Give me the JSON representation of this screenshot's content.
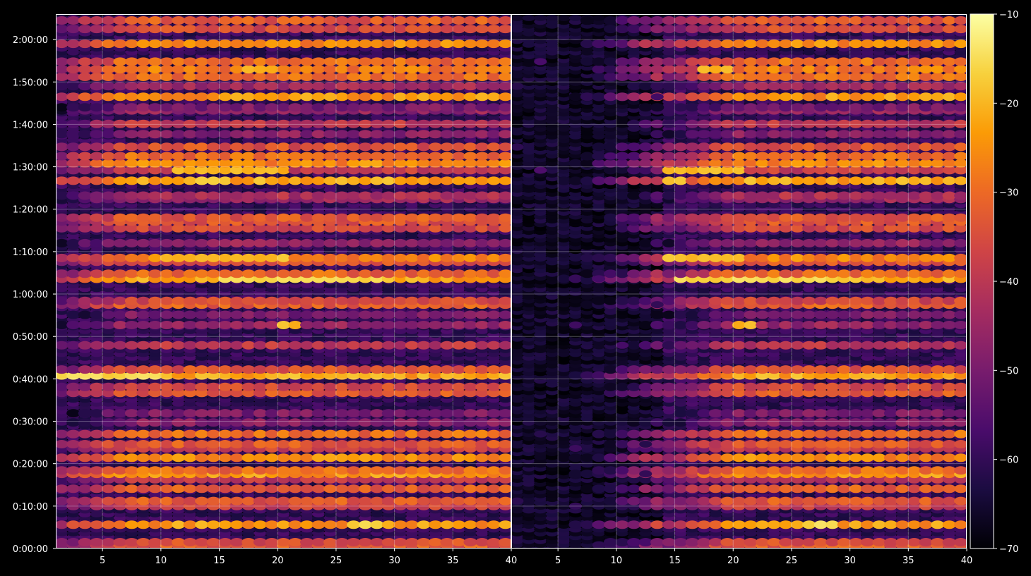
{
  "chart_data": {
    "type": "heatmap",
    "title": "",
    "xlabel": "",
    "ylabel": "",
    "grid": true,
    "panels": [
      {
        "name": "",
        "xlim": [
          1,
          40
        ],
        "x_ticks": [
          5,
          10,
          15,
          20,
          25,
          30,
          35,
          40
        ],
        "onset_x": 1
      },
      {
        "name": "",
        "xlim": [
          1,
          40
        ],
        "x_ticks": [
          5,
          10,
          15,
          20,
          25,
          30,
          35,
          40
        ],
        "onset_x": 14
      }
    ],
    "y_time_range_minutes": [
      0,
      126
    ],
    "y_ticks": [
      "0:00:00",
      "0:10:00",
      "0:20:00",
      "0:30:00",
      "0:40:00",
      "0:50:00",
      "1:00:00",
      "1:10:00",
      "1:20:00",
      "1:30:00",
      "1:40:00",
      "1:50:00",
      "2:00:00"
    ],
    "y_tick_minutes": [
      0,
      10,
      20,
      30,
      40,
      50,
      60,
      70,
      80,
      90,
      100,
      110,
      120
    ],
    "colorbar": {
      "min": -70,
      "max": -10,
      "ticks": [
        "−10",
        "−20",
        "−30",
        "−40",
        "−50",
        "−60",
        "−70"
      ],
      "tick_values": [
        -10,
        -20,
        -30,
        -40,
        -50,
        -60,
        -70
      ],
      "colormap": [
        "#000004",
        "#1b0c41",
        "#4a0c6b",
        "#781c6d",
        "#a52c60",
        "#cf4446",
        "#ed6925",
        "#fb9b06",
        "#f7d13d",
        "#fcffa4"
      ]
    },
    "bands": [
      {
        "minutes": 0.8,
        "level": -33
      },
      {
        "minutes": 1.5,
        "level": -35
      },
      {
        "minutes": 5.6,
        "level": -24
      },
      {
        "minutes": 10.0,
        "level": -38
      },
      {
        "minutes": 11.2,
        "level": -33
      },
      {
        "minutes": 14.1,
        "level": -32
      },
      {
        "minutes": 16.3,
        "level": -40
      },
      {
        "minutes": 17.6,
        "level": -24
      },
      {
        "minutes": 18.4,
        "level": -30
      },
      {
        "minutes": 21.4,
        "level": -26
      },
      {
        "minutes": 23.6,
        "level": -38
      },
      {
        "minutes": 24.6,
        "level": -33
      },
      {
        "minutes": 27.0,
        "level": -30
      },
      {
        "minutes": 29.7,
        "level": -48
      },
      {
        "minutes": 31.9,
        "level": -50
      },
      {
        "minutes": 36.7,
        "level": -33
      },
      {
        "minutes": 38.1,
        "level": -36
      },
      {
        "minutes": 40.8,
        "level": -22
      },
      {
        "minutes": 42.2,
        "level": -34
      },
      {
        "minutes": 47.9,
        "level": -40
      },
      {
        "minutes": 52.7,
        "level": -46
      },
      {
        "minutes": 55.1,
        "level": -50
      },
      {
        "minutes": 57.5,
        "level": -32
      },
      {
        "minutes": 58.4,
        "level": -36
      },
      {
        "minutes": 63.6,
        "level": -22
      },
      {
        "minutes": 64.8,
        "level": -31
      },
      {
        "minutes": 67.6,
        "level": -34
      },
      {
        "minutes": 68.5,
        "level": -27
      },
      {
        "minutes": 72.0,
        "level": -46
      },
      {
        "minutes": 75.5,
        "level": -36
      },
      {
        "minutes": 77.1,
        "level": -34
      },
      {
        "minutes": 78.0,
        "level": -33
      },
      {
        "minutes": 82.4,
        "level": -45
      },
      {
        "minutes": 83.2,
        "level": -42
      },
      {
        "minutes": 86.7,
        "level": -22
      },
      {
        "minutes": 89.2,
        "level": -38
      },
      {
        "minutes": 90.8,
        "level": -26
      },
      {
        "minutes": 92.5,
        "level": -30
      },
      {
        "minutes": 94.7,
        "level": -34
      },
      {
        "minutes": 97.7,
        "level": -48
      },
      {
        "minutes": 100.1,
        "level": -40
      },
      {
        "minutes": 103.3,
        "level": -46
      },
      {
        "minutes": 104.0,
        "level": -50
      },
      {
        "minutes": 106.5,
        "level": -24
      },
      {
        "minutes": 109.0,
        "level": -44
      },
      {
        "minutes": 111.2,
        "level": -30
      },
      {
        "minutes": 113.0,
        "level": -28
      },
      {
        "minutes": 114.8,
        "level": -30
      },
      {
        "minutes": 119.0,
        "level": -26
      },
      {
        "minutes": 122.5,
        "level": -36
      },
      {
        "minutes": 124.5,
        "level": -33
      }
    ],
    "hotspots": [
      {
        "minutes": 40.8,
        "x_from": 1,
        "x_to": 9,
        "level": -16
      },
      {
        "minutes": 63.6,
        "x_from": 15,
        "x_to": 28,
        "level": -16
      },
      {
        "minutes": 86.7,
        "x_from": 12,
        "x_to": 15,
        "level": -18
      },
      {
        "minutes": 5.6,
        "x_from": 26,
        "x_to": 28,
        "level": -16
      },
      {
        "minutes": 52.7,
        "x_from": 20,
        "x_to": 21,
        "level": -20
      },
      {
        "minutes": 68.5,
        "x_from": 10,
        "x_to": 20,
        "level": -19
      },
      {
        "minutes": 113.0,
        "x_from": 17,
        "x_to": 19,
        "level": -20
      },
      {
        "minutes": 89.2,
        "x_from": 11,
        "x_to": 20,
        "level": -20
      }
    ]
  }
}
